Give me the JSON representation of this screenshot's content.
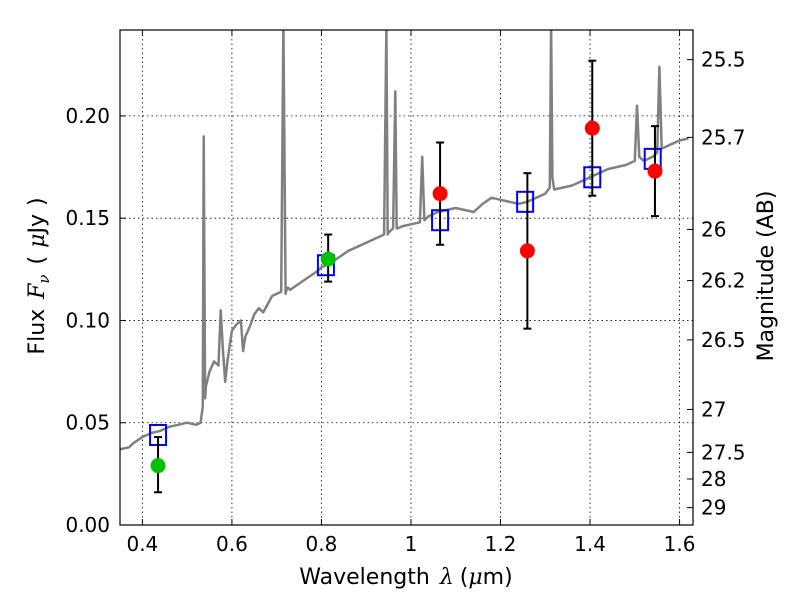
{
  "chart_data": {
    "type": "scatter",
    "xlabel_parts": [
      "Wavelength",
      "λ",
      "(",
      "μ",
      "m)"
    ],
    "ylabel_parts": [
      "Flux",
      "F",
      "ν",
      "(",
      "μ",
      "Jy",
      ")"
    ],
    "y2label": "Magnitude (AB)",
    "xlim": [
      0.35,
      1.63
    ],
    "ylim": [
      0.0,
      0.242
    ],
    "grid": true,
    "x_ticks": [
      {
        "value": 0.4,
        "label": "0.4"
      },
      {
        "value": 0.6,
        "label": "0.6"
      },
      {
        "value": 0.8,
        "label": "0.8"
      },
      {
        "value": 1.0,
        "label": "1"
      },
      {
        "value": 1.2,
        "label": "1.2"
      },
      {
        "value": 1.4,
        "label": "1.4"
      },
      {
        "value": 1.6,
        "label": "1.6"
      }
    ],
    "y_ticks": [
      {
        "value": 0.0,
        "label": "0.00"
      },
      {
        "value": 0.05,
        "label": "0.05"
      },
      {
        "value": 0.1,
        "label": "0.10"
      },
      {
        "value": 0.15,
        "label": "0.15"
      },
      {
        "value": 0.2,
        "label": "0.20"
      }
    ],
    "y2_ticks": [
      {
        "flux": 0.2275,
        "label": "25.5"
      },
      {
        "flux": 0.1895,
        "label": "25.7"
      },
      {
        "flux": 0.1445,
        "label": "26"
      },
      {
        "flux": 0.1195,
        "label": "26.2"
      },
      {
        "flux": 0.0905,
        "label": "26.5"
      },
      {
        "flux": 0.0565,
        "label": "27"
      },
      {
        "flux": 0.0355,
        "label": "27.5"
      },
      {
        "flux": 0.0225,
        "label": "28"
      },
      {
        "flux": 0.0085,
        "label": "29"
      }
    ],
    "series": [
      {
        "kind": "line",
        "color": "#808080",
        "x": [
          0.35,
          0.37,
          0.38,
          0.4,
          0.42,
          0.44,
          0.46,
          0.48,
          0.5,
          0.52,
          0.53,
          0.535,
          0.537,
          0.54,
          0.542,
          0.55,
          0.56,
          0.57,
          0.575,
          0.58,
          0.585,
          0.59,
          0.6,
          0.61,
          0.62,
          0.625,
          0.63,
          0.64,
          0.65,
          0.66,
          0.67,
          0.68,
          0.69,
          0.7,
          0.71,
          0.715,
          0.72,
          0.722,
          0.725,
          0.73,
          0.75,
          0.77,
          0.79,
          0.8,
          0.82,
          0.84,
          0.86,
          0.88,
          0.9,
          0.92,
          0.94,
          0.945,
          0.948,
          0.95,
          0.96,
          0.965,
          0.968,
          0.97,
          0.98,
          1.0,
          1.02,
          1.025,
          1.03,
          1.035,
          1.04,
          1.06,
          1.08,
          1.1,
          1.12,
          1.14,
          1.16,
          1.18,
          1.2,
          1.22,
          1.24,
          1.26,
          1.28,
          1.3,
          1.31,
          1.313,
          1.316,
          1.32,
          1.34,
          1.36,
          1.38,
          1.4,
          1.42,
          1.44,
          1.46,
          1.48,
          1.5,
          1.505,
          1.51,
          1.52,
          1.54,
          1.55,
          1.555,
          1.56,
          1.57,
          1.58,
          1.6,
          1.62
        ],
        "y": [
          0.037,
          0.038,
          0.04,
          0.043,
          0.045,
          0.046,
          0.048,
          0.049,
          0.05,
          0.049,
          0.05,
          0.058,
          0.19,
          0.062,
          0.068,
          0.075,
          0.08,
          0.078,
          0.105,
          0.085,
          0.07,
          0.08,
          0.095,
          0.098,
          0.1,
          0.085,
          0.092,
          0.097,
          0.103,
          0.106,
          0.104,
          0.108,
          0.112,
          0.113,
          0.114,
          0.245,
          0.113,
          0.115,
          0.116,
          0.115,
          0.118,
          0.121,
          0.124,
          0.126,
          0.128,
          0.131,
          0.134,
          0.136,
          0.138,
          0.14,
          0.142,
          0.245,
          0.142,
          0.143,
          0.145,
          0.212,
          0.145,
          0.145,
          0.146,
          0.147,
          0.148,
          0.18,
          0.149,
          0.15,
          0.151,
          0.153,
          0.154,
          0.155,
          0.154,
          0.153,
          0.157,
          0.16,
          0.159,
          0.158,
          0.157,
          0.158,
          0.16,
          0.162,
          0.165,
          0.245,
          0.17,
          0.164,
          0.165,
          0.166,
          0.168,
          0.17,
          0.172,
          0.174,
          0.175,
          0.176,
          0.178,
          0.205,
          0.18,
          0.178,
          0.18,
          0.182,
          0.224,
          0.184,
          0.185,
          0.186,
          0.188,
          0.189
        ]
      },
      {
        "kind": "open-square",
        "color": "#0000ff",
        "x": [
          0.435,
          0.81,
          1.065,
          1.255,
          1.405,
          1.54
        ],
        "y": [
          0.044,
          0.127,
          0.149,
          0.158,
          0.17,
          0.179
        ]
      },
      {
        "kind": "filled-circle",
        "color": "#00c000",
        "x": [
          0.435,
          0.815
        ],
        "y": [
          0.029,
          0.13
        ],
        "yerr_low": [
          0.016,
          0.119
        ],
        "yerr_high": [
          0.043,
          0.142
        ]
      },
      {
        "kind": "filled-circle",
        "color": "#ff0000",
        "x": [
          1.065,
          1.26,
          1.405,
          1.545
        ],
        "y": [
          0.162,
          0.134,
          0.194,
          0.173
        ],
        "yerr_low": [
          0.137,
          0.096,
          0.161,
          0.151
        ],
        "yerr_high": [
          0.187,
          0.172,
          0.227,
          0.195
        ]
      }
    ]
  }
}
